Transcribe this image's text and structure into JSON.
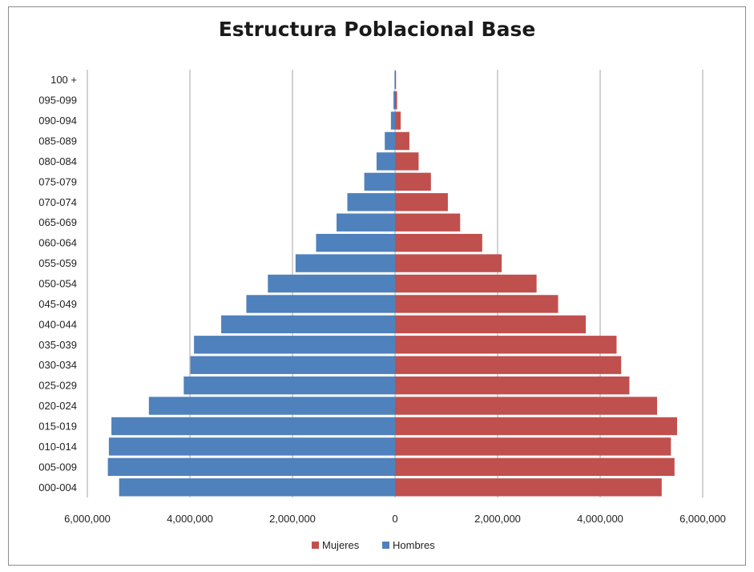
{
  "chart_data": {
    "type": "bar",
    "orientation": "horizontal",
    "title": "Estructura Poblacional Base",
    "categories": [
      "000-004",
      "005-009",
      "010-014",
      "015-019",
      "020-024",
      "025-029",
      "030-034",
      "035-039",
      "040-044",
      "045-049",
      "050-054",
      "055-059",
      "060-064",
      "065-069",
      "070-074",
      "075-079",
      "080-084",
      "085-089",
      "090-094",
      "095-099",
      "100 +"
    ],
    "series": [
      {
        "name": "Mujeres",
        "color": "#c0504d",
        "values": [
          5200000,
          5450000,
          5380000,
          5500000,
          5110000,
          4570000,
          4410000,
          4320000,
          3720000,
          3180000,
          2760000,
          2080000,
          1700000,
          1270000,
          1030000,
          700000,
          460000,
          280000,
          110000,
          40000,
          20000
        ]
      },
      {
        "name": "Hombres",
        "color": "#4f81bd",
        "values": [
          5380000,
          5600000,
          5580000,
          5530000,
          4800000,
          4120000,
          3990000,
          3920000,
          3390000,
          2900000,
          2480000,
          1940000,
          1540000,
          1140000,
          930000,
          600000,
          360000,
          200000,
          80000,
          30000,
          10000
        ]
      }
    ],
    "xlim": [
      -6000000,
      6000000
    ],
    "xticks": [
      "6,000,000",
      "4,000,000",
      "2,000,000",
      "0",
      "2,000,000",
      "4,000,000",
      "6,000,000"
    ],
    "xtick_values": [
      -6000000,
      -4000000,
      -2000000,
      0,
      2000000,
      4000000,
      6000000
    ],
    "grid": "vertical",
    "legend": "bottom"
  }
}
